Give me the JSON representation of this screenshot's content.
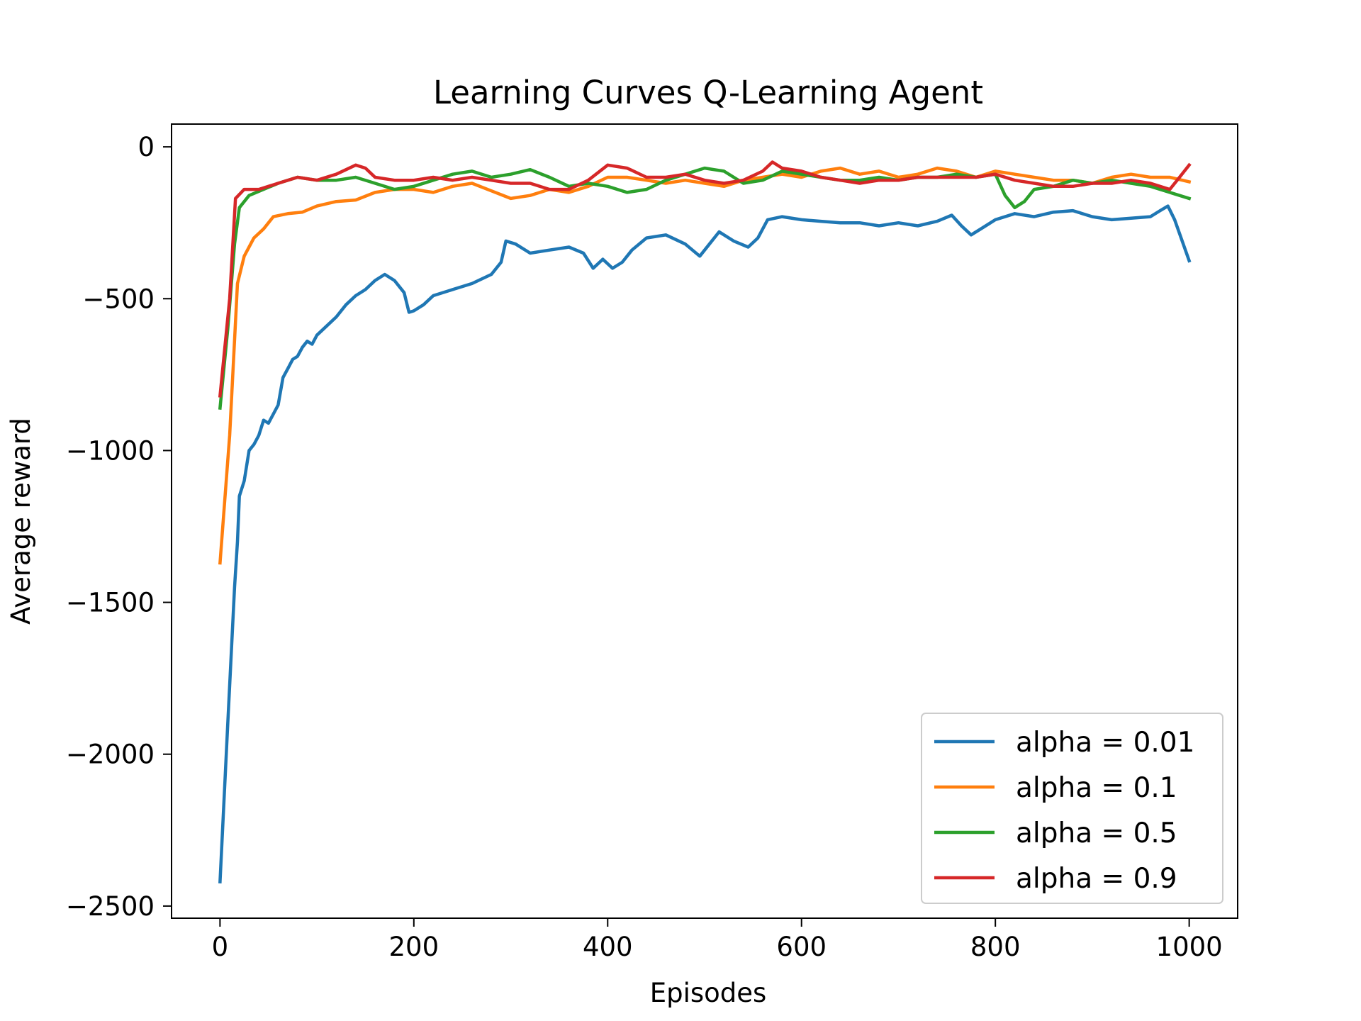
{
  "chart_data": {
    "type": "line",
    "title": "Learning Curves Q-Learning Agent",
    "xlabel": "Episodes",
    "ylabel": "Average reward",
    "xlim": [
      -50,
      1050
    ],
    "ylim": [
      -2540,
      75
    ],
    "xticks": [
      0,
      200,
      400,
      600,
      800,
      1000
    ],
    "yticks": [
      0,
      -500,
      -1000,
      -1500,
      -2000,
      -2500
    ],
    "xtick_labels": [
      "0",
      "200",
      "400",
      "600",
      "800",
      "1000"
    ],
    "ytick_labels": [
      "0",
      "−500",
      "−1000",
      "−1500",
      "−2000",
      "−2500"
    ],
    "grid": false,
    "legend_position": "lower-right",
    "series": [
      {
        "name": "alpha = 0.01",
        "color": "#1f77b4",
        "points": [
          [
            0,
            -2420
          ],
          [
            8,
            -1900
          ],
          [
            15,
            -1450
          ],
          [
            18,
            -1300
          ],
          [
            20,
            -1150
          ],
          [
            25,
            -1100
          ],
          [
            30,
            -1000
          ],
          [
            35,
            -980
          ],
          [
            40,
            -950
          ],
          [
            45,
            -900
          ],
          [
            50,
            -910
          ],
          [
            55,
            -880
          ],
          [
            60,
            -850
          ],
          [
            65,
            -760
          ],
          [
            70,
            -730
          ],
          [
            75,
            -700
          ],
          [
            80,
            -690
          ],
          [
            85,
            -660
          ],
          [
            90,
            -640
          ],
          [
            95,
            -650
          ],
          [
            100,
            -620
          ],
          [
            110,
            -590
          ],
          [
            120,
            -560
          ],
          [
            130,
            -520
          ],
          [
            140,
            -490
          ],
          [
            150,
            -470
          ],
          [
            160,
            -440
          ],
          [
            170,
            -420
          ],
          [
            180,
            -440
          ],
          [
            190,
            -480
          ],
          [
            195,
            -545
          ],
          [
            200,
            -540
          ],
          [
            210,
            -520
          ],
          [
            220,
            -490
          ],
          [
            240,
            -470
          ],
          [
            260,
            -450
          ],
          [
            280,
            -420
          ],
          [
            290,
            -380
          ],
          [
            295,
            -310
          ],
          [
            305,
            -320
          ],
          [
            320,
            -350
          ],
          [
            340,
            -340
          ],
          [
            360,
            -330
          ],
          [
            375,
            -350
          ],
          [
            385,
            -400
          ],
          [
            395,
            -370
          ],
          [
            405,
            -400
          ],
          [
            415,
            -380
          ],
          [
            425,
            -340
          ],
          [
            440,
            -300
          ],
          [
            460,
            -290
          ],
          [
            480,
            -320
          ],
          [
            495,
            -360
          ],
          [
            505,
            -320
          ],
          [
            515,
            -280
          ],
          [
            530,
            -310
          ],
          [
            545,
            -330
          ],
          [
            555,
            -300
          ],
          [
            565,
            -240
          ],
          [
            580,
            -230
          ],
          [
            600,
            -240
          ],
          [
            620,
            -245
          ],
          [
            640,
            -250
          ],
          [
            660,
            -250
          ],
          [
            680,
            -260
          ],
          [
            700,
            -250
          ],
          [
            720,
            -260
          ],
          [
            740,
            -245
          ],
          [
            755,
            -225
          ],
          [
            765,
            -260
          ],
          [
            775,
            -290
          ],
          [
            785,
            -270
          ],
          [
            800,
            -240
          ],
          [
            820,
            -220
          ],
          [
            840,
            -230
          ],
          [
            860,
            -215
          ],
          [
            880,
            -210
          ],
          [
            900,
            -230
          ],
          [
            920,
            -240
          ],
          [
            940,
            -235
          ],
          [
            960,
            -230
          ],
          [
            970,
            -210
          ],
          [
            978,
            -195
          ],
          [
            985,
            -240
          ],
          [
            1000,
            -375
          ]
        ]
      },
      {
        "name": "alpha = 0.1",
        "color": "#ff7f0e",
        "points": [
          [
            0,
            -1370
          ],
          [
            10,
            -950
          ],
          [
            18,
            -450
          ],
          [
            25,
            -360
          ],
          [
            35,
            -300
          ],
          [
            45,
            -270
          ],
          [
            55,
            -230
          ],
          [
            70,
            -220
          ],
          [
            85,
            -215
          ],
          [
            100,
            -195
          ],
          [
            120,
            -180
          ],
          [
            140,
            -175
          ],
          [
            160,
            -150
          ],
          [
            180,
            -140
          ],
          [
            200,
            -140
          ],
          [
            220,
            -150
          ],
          [
            240,
            -130
          ],
          [
            260,
            -120
          ],
          [
            280,
            -145
          ],
          [
            300,
            -170
          ],
          [
            320,
            -160
          ],
          [
            340,
            -140
          ],
          [
            360,
            -150
          ],
          [
            380,
            -130
          ],
          [
            400,
            -100
          ],
          [
            420,
            -100
          ],
          [
            440,
            -110
          ],
          [
            460,
            -120
          ],
          [
            480,
            -110
          ],
          [
            500,
            -120
          ],
          [
            520,
            -130
          ],
          [
            540,
            -110
          ],
          [
            560,
            -100
          ],
          [
            580,
            -90
          ],
          [
            600,
            -100
          ],
          [
            620,
            -80
          ],
          [
            640,
            -70
          ],
          [
            660,
            -90
          ],
          [
            680,
            -80
          ],
          [
            700,
            -100
          ],
          [
            720,
            -90
          ],
          [
            740,
            -70
          ],
          [
            760,
            -80
          ],
          [
            780,
            -100
          ],
          [
            800,
            -80
          ],
          [
            820,
            -90
          ],
          [
            840,
            -100
          ],
          [
            860,
            -110
          ],
          [
            880,
            -110
          ],
          [
            900,
            -120
          ],
          [
            920,
            -100
          ],
          [
            940,
            -90
          ],
          [
            960,
            -100
          ],
          [
            980,
            -100
          ],
          [
            1000,
            -115
          ]
        ]
      },
      {
        "name": "alpha = 0.5",
        "color": "#2ca02c",
        "points": [
          [
            0,
            -860
          ],
          [
            8,
            -600
          ],
          [
            15,
            -320
          ],
          [
            20,
            -200
          ],
          [
            30,
            -160
          ],
          [
            45,
            -140
          ],
          [
            60,
            -120
          ],
          [
            80,
            -100
          ],
          [
            100,
            -110
          ],
          [
            120,
            -110
          ],
          [
            140,
            -100
          ],
          [
            160,
            -120
          ],
          [
            180,
            -140
          ],
          [
            200,
            -130
          ],
          [
            220,
            -110
          ],
          [
            240,
            -90
          ],
          [
            260,
            -80
          ],
          [
            280,
            -100
          ],
          [
            300,
            -90
          ],
          [
            320,
            -75
          ],
          [
            340,
            -100
          ],
          [
            360,
            -130
          ],
          [
            380,
            -120
          ],
          [
            400,
            -130
          ],
          [
            420,
            -150
          ],
          [
            440,
            -140
          ],
          [
            460,
            -110
          ],
          [
            480,
            -90
          ],
          [
            500,
            -70
          ],
          [
            520,
            -80
          ],
          [
            540,
            -120
          ],
          [
            560,
            -110
          ],
          [
            580,
            -80
          ],
          [
            600,
            -90
          ],
          [
            620,
            -100
          ],
          [
            640,
            -110
          ],
          [
            660,
            -110
          ],
          [
            680,
            -100
          ],
          [
            700,
            -110
          ],
          [
            720,
            -100
          ],
          [
            740,
            -100
          ],
          [
            760,
            -90
          ],
          [
            780,
            -100
          ],
          [
            800,
            -90
          ],
          [
            810,
            -160
          ],
          [
            820,
            -200
          ],
          [
            830,
            -180
          ],
          [
            840,
            -140
          ],
          [
            860,
            -130
          ],
          [
            880,
            -110
          ],
          [
            900,
            -120
          ],
          [
            920,
            -110
          ],
          [
            940,
            -120
          ],
          [
            960,
            -130
          ],
          [
            980,
            -150
          ],
          [
            1000,
            -170
          ]
        ]
      },
      {
        "name": "alpha = 0.9",
        "color": "#d62728",
        "points": [
          [
            0,
            -820
          ],
          [
            10,
            -500
          ],
          [
            16,
            -170
          ],
          [
            25,
            -140
          ],
          [
            40,
            -140
          ],
          [
            60,
            -120
          ],
          [
            80,
            -100
          ],
          [
            100,
            -110
          ],
          [
            120,
            -90
          ],
          [
            140,
            -60
          ],
          [
            150,
            -70
          ],
          [
            160,
            -100
          ],
          [
            180,
            -110
          ],
          [
            200,
            -110
          ],
          [
            220,
            -100
          ],
          [
            240,
            -110
          ],
          [
            260,
            -100
          ],
          [
            280,
            -110
          ],
          [
            300,
            -120
          ],
          [
            320,
            -120
          ],
          [
            340,
            -140
          ],
          [
            360,
            -140
          ],
          [
            380,
            -110
          ],
          [
            400,
            -60
          ],
          [
            420,
            -70
          ],
          [
            440,
            -100
          ],
          [
            460,
            -100
          ],
          [
            480,
            -90
          ],
          [
            500,
            -110
          ],
          [
            520,
            -120
          ],
          [
            540,
            -110
          ],
          [
            560,
            -80
          ],
          [
            570,
            -50
          ],
          [
            580,
            -70
          ],
          [
            600,
            -80
          ],
          [
            620,
            -100
          ],
          [
            640,
            -110
          ],
          [
            660,
            -120
          ],
          [
            680,
            -110
          ],
          [
            700,
            -110
          ],
          [
            720,
            -100
          ],
          [
            740,
            -100
          ],
          [
            760,
            -100
          ],
          [
            780,
            -100
          ],
          [
            800,
            -90
          ],
          [
            820,
            -110
          ],
          [
            840,
            -120
          ],
          [
            860,
            -130
          ],
          [
            880,
            -130
          ],
          [
            900,
            -120
          ],
          [
            920,
            -120
          ],
          [
            940,
            -110
          ],
          [
            960,
            -120
          ],
          [
            980,
            -140
          ],
          [
            990,
            -100
          ],
          [
            1000,
            -60
          ]
        ]
      }
    ]
  }
}
